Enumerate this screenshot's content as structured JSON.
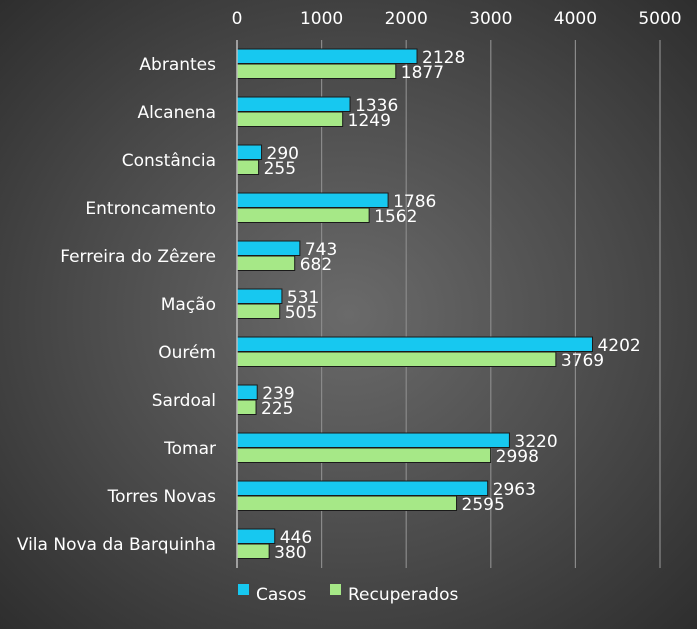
{
  "chart_data": {
    "type": "bar",
    "orientation": "horizontal",
    "categories": [
      "Abrantes",
      "Alcanena",
      "Constância",
      "Entroncamento",
      "Ferreira do Zêzere",
      "Mação",
      "Ourém",
      "Sardoal",
      "Tomar",
      "Torres Novas",
      "Vila Nova da Barquinha"
    ],
    "series": [
      {
        "name": "Casos",
        "color": "#17c8f0",
        "values": [
          2128,
          1336,
          290,
          1786,
          743,
          531,
          4202,
          239,
          3220,
          2963,
          446
        ]
      },
      {
        "name": "Recuperados",
        "color": "#a6e887",
        "values": [
          1877,
          1249,
          255,
          1562,
          682,
          505,
          3769,
          225,
          2998,
          2595,
          380
        ]
      }
    ],
    "xlim": [
      0,
      5000
    ],
    "xticks": [
      "0",
      "1000",
      "2000",
      "3000",
      "4000",
      "5000"
    ],
    "x_axis_position": "top",
    "grid": true,
    "legend_position": "bottom-left",
    "title": "",
    "xlabel": "",
    "ylabel": ""
  }
}
